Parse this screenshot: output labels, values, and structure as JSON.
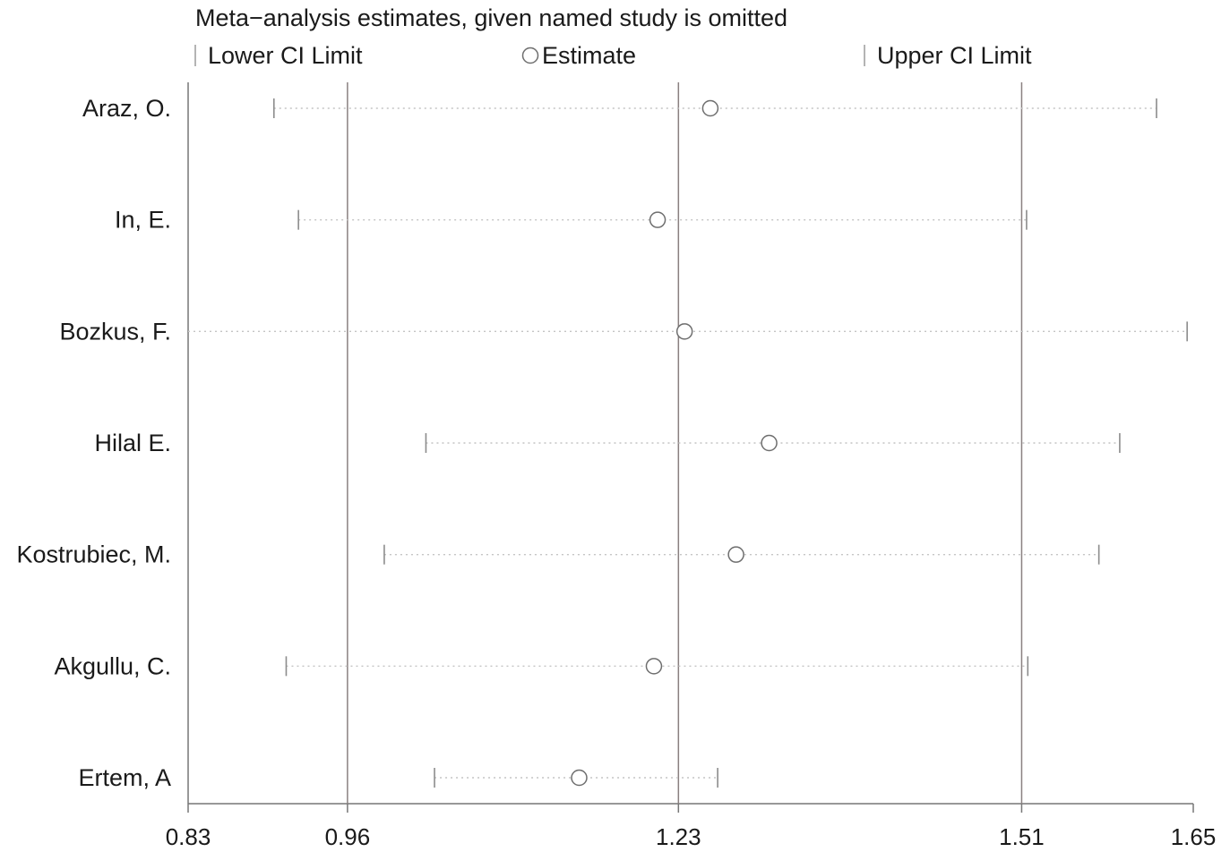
{
  "chart_data": {
    "type": "forest",
    "title": "Meta−analysis estimates, given named study is omitted",
    "legend": {
      "lower_label": "Lower CI Limit",
      "estimate_label": "Estimate",
      "upper_label": "Upper CI Limit",
      "placement": "top"
    },
    "x_ticks": [
      0.83,
      0.96,
      1.23,
      1.51,
      1.65
    ],
    "x_tick_labels": [
      "0.83",
      "0.96",
      "1.23",
      "1.51",
      "1.65"
    ],
    "reference_lines": [
      0.96,
      1.23,
      1.51
    ],
    "xlim": [
      0.83,
      1.65
    ],
    "studies": [
      {
        "name": "Araz, O.",
        "lower": 0.9,
        "estimate": 1.256,
        "upper": 1.62
      },
      {
        "name": "In, E.",
        "lower": 0.92,
        "estimate": 1.213,
        "upper": 1.514
      },
      {
        "name": "Bozkus, F.",
        "lower": 0.83,
        "estimate": 1.235,
        "upper": 1.645
      },
      {
        "name": "Hilal E.",
        "lower": 1.024,
        "estimate": 1.304,
        "upper": 1.59
      },
      {
        "name": "Kostrubiec, M.",
        "lower": 0.99,
        "estimate": 1.277,
        "upper": 1.573
      },
      {
        "name": "Akgullu, C.",
        "lower": 0.91,
        "estimate": 1.21,
        "upper": 1.515
      },
      {
        "name": "Ertem, A",
        "lower": 1.031,
        "estimate": 1.149,
        "upper": 1.262
      }
    ]
  }
}
